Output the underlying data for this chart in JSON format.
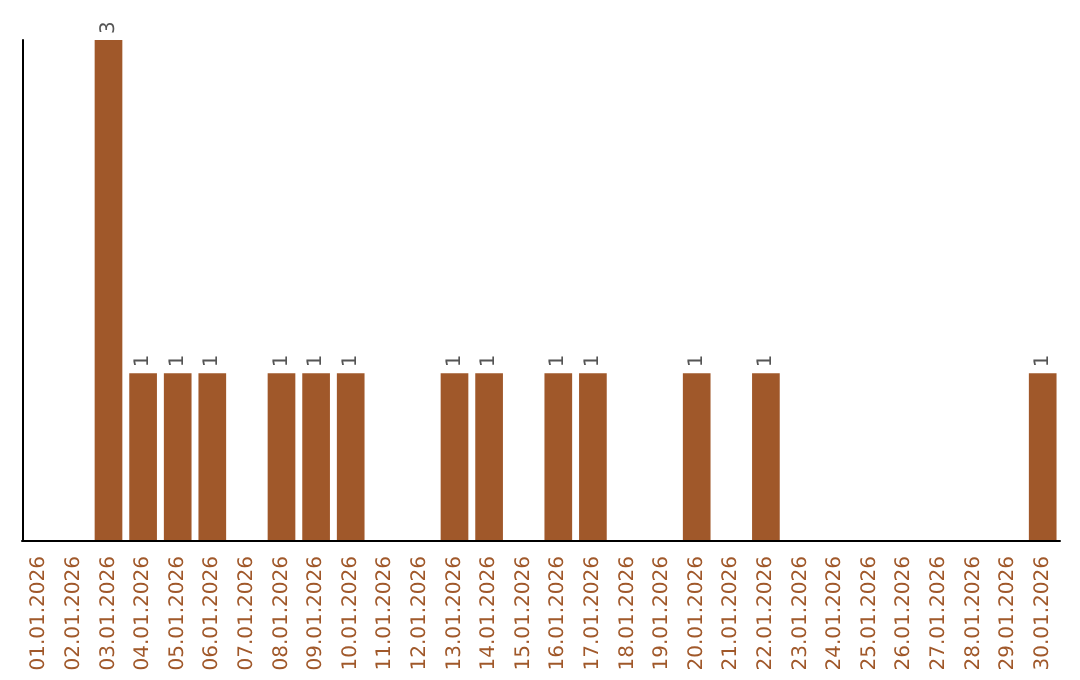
{
  "chart_data": {
    "type": "bar",
    "categories": [
      "01.01.2026",
      "02.01.2026",
      "03.01.2026",
      "04.01.2026",
      "05.01.2026",
      "06.01.2026",
      "07.01.2026",
      "08.01.2026",
      "09.01.2026",
      "10.01.2026",
      "11.01.2026",
      "12.01.2026",
      "13.01.2026",
      "14.01.2026",
      "15.01.2026",
      "16.01.2026",
      "17.01.2026",
      "18.01.2026",
      "19.01.2026",
      "20.01.2026",
      "21.01.2026",
      "22.01.2026",
      "23.01.2026",
      "24.01.2026",
      "25.01.2026",
      "26.01.2026",
      "27.01.2026",
      "28.01.2026",
      "29.01.2026",
      "30.01.2026"
    ],
    "values": [
      0,
      0,
      3,
      1,
      1,
      1,
      0,
      1,
      1,
      1,
      0,
      0,
      1,
      1,
      0,
      1,
      1,
      0,
      0,
      1,
      0,
      1,
      0,
      0,
      0,
      0,
      0,
      0,
      0,
      1
    ],
    "value_labels": [
      null,
      null,
      "3",
      "1",
      "1",
      "1",
      null,
      "1",
      "1",
      "1",
      null,
      null,
      "1",
      "1",
      null,
      "1",
      "1",
      null,
      null,
      "1",
      null,
      "1",
      null,
      null,
      null,
      null,
      null,
      null,
      null,
      "1"
    ],
    "color": "#a0582a",
    "tick_labels": "x"
  }
}
